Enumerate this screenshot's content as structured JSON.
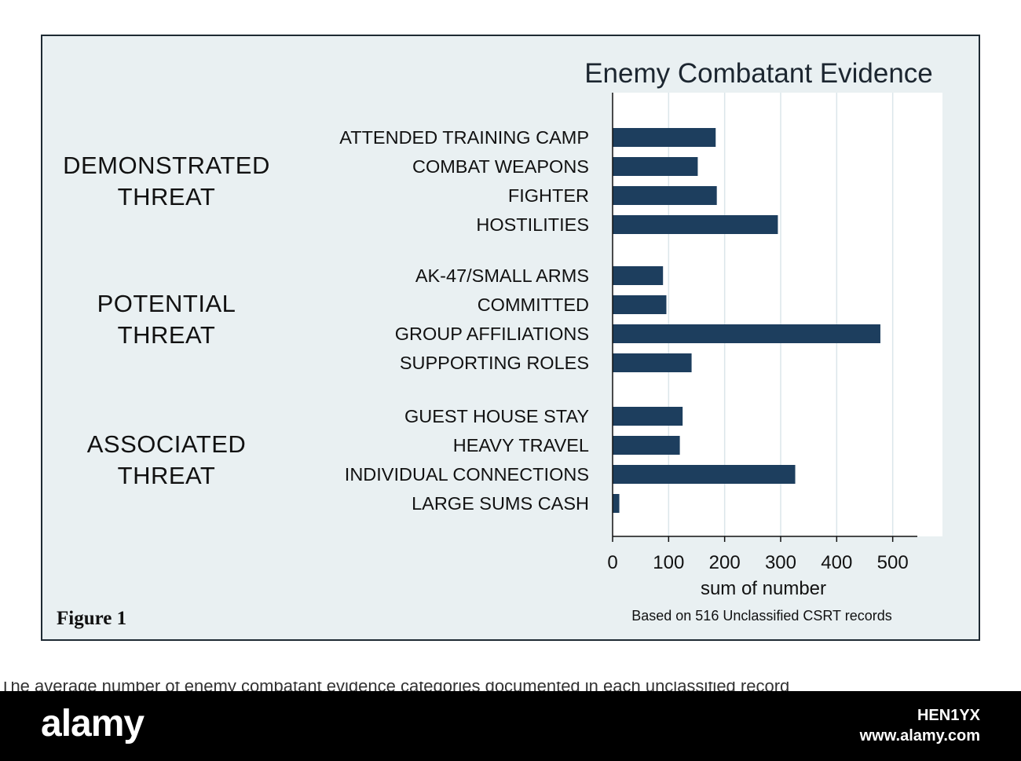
{
  "chart_data": {
    "type": "bar",
    "orientation": "horizontal",
    "title": "Enemy Combatant Evidence",
    "xlabel": "sum of number",
    "xlim": [
      0,
      540
    ],
    "xticks": [
      0,
      100,
      200,
      300,
      400,
      500
    ],
    "grid": true,
    "groups": [
      {
        "name": [
          "DEMONSTRATED",
          "THREAT"
        ],
        "categories": [
          "ATTENDED TRAINING CAMP",
          "COMBAT WEAPONS",
          "FIGHTER",
          "HOSTILITIES"
        ],
        "values": [
          184,
          152,
          186,
          295
        ]
      },
      {
        "name": [
          "POTENTIAL",
          "THREAT"
        ],
        "categories": [
          "AK-47/SMALL ARMS",
          "COMMITTED",
          "GROUP AFFILIATIONS",
          "SUPPORTING ROLES"
        ],
        "values": [
          90,
          96,
          478,
          141
        ]
      },
      {
        "name": [
          "ASSOCIATED",
          "THREAT"
        ],
        "categories": [
          "GUEST HOUSE STAY",
          "HEAVY TRAVEL",
          "INDIVIDUAL CONNECTIONS",
          "LARGE SUMS CASH"
        ],
        "values": [
          125,
          120,
          326,
          12
        ]
      }
    ],
    "bar_color": "#1d3e5e"
  },
  "figure_label": "Figure 1",
  "note": "Based on 516 Unclassified CSRT records",
  "clipped_text": "The average number of enemy combatant evidence categories documented in each unclassified record",
  "watermark": {
    "logo": "alamy",
    "image_id": "HEN1YX",
    "site": "www.alamy.com"
  }
}
